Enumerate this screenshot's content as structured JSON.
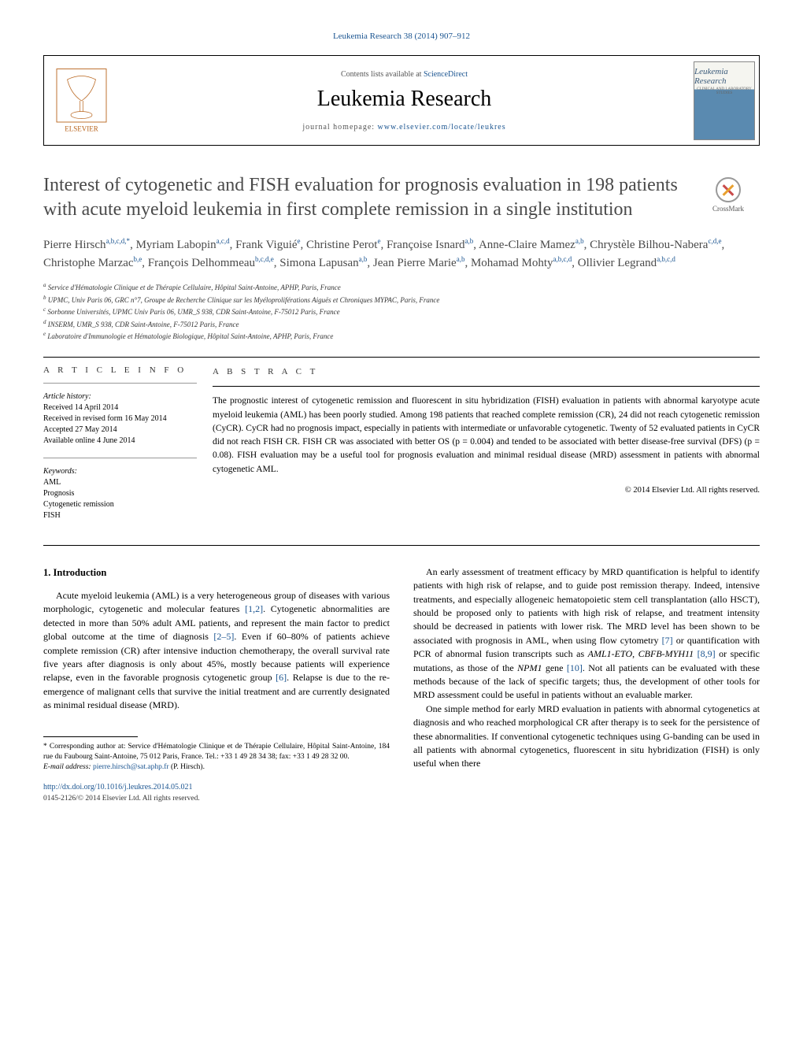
{
  "citation": "Leukemia Research 38 (2014) 907–912",
  "header": {
    "contents_prefix": "Contents lists available at ",
    "contents_link": "ScienceDirect",
    "journal_name": "Leukemia Research",
    "homepage_prefix": "journal homepage: ",
    "homepage_link": "www.elsevier.com/locate/leukres",
    "cover_title": "Leukemia Research",
    "cover_sub": "CLINICAL AND LABORATORY STUDIES"
  },
  "crossmark_label": "CrossMark",
  "title": "Interest of cytogenetic and FISH evaluation for prognosis evaluation in 198 patients with acute myeloid leukemia in first complete remission in a single institution",
  "authors_html": "Pierre Hirsch<sup>a,b,c,d,*</sup>, Myriam Labopin<sup>a,c,d</sup>, Frank Viguié<sup>e</sup>, Christine Perot<sup>e</sup>, Françoise Isnard<sup>a,b</sup>, Anne-Claire Mamez<sup>a,b</sup>, Chrystèle Bilhou-Nabera<sup>c,d,e</sup>, Christophe Marzac<sup>b,e</sup>, François Delhommeau<sup>b,c,d,e</sup>, Simona Lapusan<sup>a,b</sup>, Jean Pierre Marie<sup>a,b</sup>, Mohamad Mohty<sup>a,b,c,d</sup>, Ollivier Legrand<sup>a,b,c,d</sup>",
  "affiliations": [
    "Service d'Hématologie Clinique et de Thérapie Cellulaire, Hôpital Saint-Antoine, APHP, Paris, France",
    "UPMC, Univ Paris 06, GRC n°7, Groupe de Recherche Clinique sur les Myéloproliférations Aiguës et Chroniques MYPAC, Paris, France",
    "Sorbonne Universités, UPMC Univ Paris 06, UMR_S 938, CDR Saint-Antoine, F-75012 Paris, France",
    "INSERM, UMR_S 938, CDR Saint-Antoine, F-75012 Paris, France",
    "Laboratoire d'Immunologie et Hématologie Biologique, Hôpital Saint-Antoine, APHP, Paris, France"
  ],
  "affil_markers": [
    "a",
    "b",
    "c",
    "d",
    "e"
  ],
  "article_info": {
    "heading": "a r t i c l e   i n f o",
    "history_label": "Article history:",
    "received": "Received 14 April 2014",
    "revised": "Received in revised form 16 May 2014",
    "accepted": "Accepted 27 May 2014",
    "online": "Available online 4 June 2014",
    "keywords_label": "Keywords:",
    "keywords": [
      "AML",
      "Prognosis",
      "Cytogenetic remission",
      "FISH"
    ]
  },
  "abstract": {
    "heading": "a b s t r a c t",
    "text": "The prognostic interest of cytogenetic remission and fluorescent in situ hybridization (FISH) evaluation in patients with abnormal karyotype acute myeloid leukemia (AML) has been poorly studied. Among 198 patients that reached complete remission (CR), 24 did not reach cytogenetic remission (CyCR). CyCR had no prognosis impact, especially in patients with intermediate or unfavorable cytogenetic. Twenty of 52 evaluated patients in CyCR did not reach FISH CR. FISH CR was associated with better OS (p = 0.004) and tended to be associated with better disease-free survival (DFS) (p = 0.08). FISH evaluation may be a useful tool for prognosis evaluation and minimal residual disease (MRD) assessment in patients with abnormal cytogenetic AML.",
    "copyright": "© 2014 Elsevier Ltd. All rights reserved."
  },
  "body": {
    "intro_heading": "1.  Introduction",
    "left_paras": [
      "Acute myeloid leukemia (AML) is a very heterogeneous group of diseases with various morphologic, cytogenetic and molecular features [1,2]. Cytogenetic abnormalities are detected in more than 50% adult AML patients, and represent the main factor to predict global outcome at the time of diagnosis [2–5]. Even if 60–80% of patients achieve complete remission (CR) after intensive induction chemotherapy, the overall survival rate five years after diagnosis is only about 45%, mostly because patients will experience relapse, even in the favorable prognosis cytogenetic group [6]. Relapse is due to the re-emergence of malignant cells that survive the initial treatment and are currently designated as minimal residual disease (MRD)."
    ],
    "right_paras": [
      "An early assessment of treatment efficacy by MRD quantification is helpful to identify patients with high risk of relapse, and to guide post remission therapy. Indeed, intensive treatments, and especially allogeneic hematopoietic stem cell transplantation (allo HSCT), should be proposed only to patients with high risk of relapse, and treatment intensity should be decreased in patients with lower risk. The MRD level has been shown to be associated with prognosis in AML, when using flow cytometry [7] or quantification with PCR of abnormal fusion transcripts such as AML1-ETO, CBFB-MYH11 [8,9] or specific mutations, as those of the NPM1 gene [10]. Not all patients can be evaluated with these methods because of the lack of specific targets; thus, the development of other tools for MRD assessment could be useful in patients without an evaluable marker.",
      "One simple method for early MRD evaluation in patients with abnormal cytogenetics at diagnosis and who reached morphological CR after therapy is to seek for the persistence of these abnormalities. If conventional cytogenetic techniques using G-banding can be used in all patients with abnormal cytogenetics, fluorescent in situ hybridization (FISH) is only useful when there"
    ],
    "refs": {
      "r1": "[1,2]",
      "r2": "[2–5]",
      "r3": "[6]",
      "r4": "[7]",
      "r5": "[8,9]",
      "r6": "[10]"
    }
  },
  "footnotes": {
    "corresponding": "* Corresponding author at: Service d'Hématologie Clinique et de Thérapie Cellulaire, Hôpital Saint-Antoine, 184 rue du Faubourg Saint-Antoine, 75 012 Paris, France. Tel.: +33 1 49 28 34 38; fax: +33 1 49 28 32 00.",
    "email_label": "E-mail address: ",
    "email": "pierre.hirsch@sat.aphp.fr",
    "email_suffix": " (P. Hirsch)."
  },
  "doi": {
    "link": "http://dx.doi.org/10.1016/j.leukres.2014.05.021",
    "issn": "0145-2126/© 2014 Elsevier Ltd. All rights reserved."
  },
  "colors": {
    "link": "#1a5490",
    "text": "#000000",
    "title_gray": "#4a4a4a"
  }
}
